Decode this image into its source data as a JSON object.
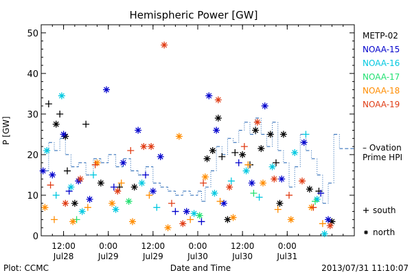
{
  "chart_data": {
    "type": "scatter",
    "title": "Hemispheric Power [GW]",
    "ylabel": "P [GW]",
    "xlabel": "Date and Time",
    "ylim": [
      0,
      52
    ],
    "xlim": [
      "2013-07-28 06:00",
      "2013-07-31 18:00"
    ],
    "yticks": [
      0,
      10,
      20,
      30,
      40,
      50
    ],
    "xticks": [
      {
        "time": "2013-07-28 12:00",
        "line1": "12:00",
        "line2": "Jul28"
      },
      {
        "time": "2013-07-29 00:00",
        "line1": "0:00",
        "line2": "Jul29"
      },
      {
        "time": "2013-07-29 12:00",
        "line1": "12:00",
        "line2": "Jul29"
      },
      {
        "time": "2013-07-30 00:00",
        "line1": "0:00",
        "line2": "Jul30"
      },
      {
        "time": "2013-07-30 12:00",
        "line1": "12:00",
        "line2": "Jul30"
      },
      {
        "time": "2013-07-31 00:00",
        "line1": "0:00",
        "line2": "Jul31"
      }
    ],
    "series": [
      {
        "name": "METP-02",
        "color": "#000000",
        "points": [
          [
            "2013-07-28 08:00",
            32.5,
            "+"
          ],
          [
            "2013-07-28 10:00",
            27.5,
            "*"
          ],
          [
            "2013-07-28 11:00",
            30.0,
            "+"
          ],
          [
            "2013-07-28 12:30",
            24.5,
            "*"
          ],
          [
            "2013-07-28 13:00",
            16.0,
            "+"
          ],
          [
            "2013-07-28 15:00",
            8.0,
            "*"
          ],
          [
            "2013-07-28 18:00",
            27.5,
            "+"
          ],
          [
            "2013-07-28 22:00",
            13.0,
            "*"
          ],
          [
            "2013-07-29 03:00",
            12.0,
            "+"
          ],
          [
            "2013-07-29 07:00",
            12.0,
            "*"
          ],
          [
            "2013-07-30 02:30",
            19.0,
            "*"
          ],
          [
            "2013-07-30 04:00",
            21.0,
            "*"
          ],
          [
            "2013-07-30 05:30",
            29.0,
            "*"
          ],
          [
            "2013-07-30 06:30",
            19.5,
            "+"
          ],
          [
            "2013-07-30 08:00",
            4.0,
            "*"
          ],
          [
            "2013-07-30 10:00",
            20.5,
            "+"
          ],
          [
            "2013-07-30 12:00",
            20.0,
            "*"
          ],
          [
            "2013-07-30 14:00",
            17.5,
            "+"
          ],
          [
            "2013-07-30 15:30",
            26.0,
            "*"
          ],
          [
            "2013-07-30 17:00",
            21.5,
            "*"
          ],
          [
            "2013-07-30 19:30",
            25.0,
            "*"
          ],
          [
            "2013-07-30 21:00",
            18.0,
            "+"
          ],
          [
            "2013-07-30 23:00",
            25.0,
            "*"
          ],
          [
            "2013-07-30 22:00",
            8.0,
            "*"
          ],
          [
            "2013-07-31 06:00",
            11.5,
            "*"
          ],
          [
            "2013-07-31 08:30",
            11.0,
            "+"
          ],
          [
            "2013-07-31 12:00",
            3.5,
            "*"
          ]
        ]
      },
      {
        "name": "NOAA-15",
        "color": "#0000cc",
        "points": [
          [
            "2013-07-28 06:30",
            16.0,
            "*"
          ],
          [
            "2013-07-28 09:00",
            15.0,
            "*"
          ],
          [
            "2013-07-28 12:00",
            25.0,
            "*"
          ],
          [
            "2013-07-28 13:30",
            11.0,
            "+"
          ],
          [
            "2013-07-28 16:00",
            13.5,
            "*"
          ],
          [
            "2013-07-28 19:00",
            9.0,
            "*"
          ],
          [
            "2013-07-28 23:30",
            36.0,
            "*"
          ],
          [
            "2013-07-29 01:30",
            12.0,
            "+"
          ],
          [
            "2013-07-29 04:00",
            18.0,
            "*"
          ],
          [
            "2013-07-29 08:00",
            26.0,
            "*"
          ],
          [
            "2013-07-29 10:00",
            15.0,
            "+"
          ],
          [
            "2013-07-29 12:00",
            11.0,
            "*"
          ],
          [
            "2013-07-29 14:00",
            19.5,
            "*"
          ],
          [
            "2013-07-29 18:00",
            6.0,
            "+"
          ],
          [
            "2013-07-29 21:00",
            6.0,
            "*"
          ],
          [
            "2013-07-30 01:00",
            3.5,
            "+"
          ],
          [
            "2013-07-30 03:00",
            34.5,
            "*"
          ],
          [
            "2013-07-30 05:00",
            26.0,
            "*"
          ],
          [
            "2013-07-30 07:00",
            8.0,
            "*"
          ],
          [
            "2013-07-30 11:00",
            18.0,
            "+"
          ],
          [
            "2013-07-30 14:30",
            13.0,
            "*"
          ],
          [
            "2013-07-30 18:00",
            32.0,
            "*"
          ],
          [
            "2013-07-30 22:30",
            14.0,
            "*"
          ],
          [
            "2013-07-31 04:30",
            23.0,
            "*"
          ],
          [
            "2013-07-31 09:00",
            10.5,
            "+"
          ],
          [
            "2013-07-31 11:00",
            4.0,
            "*"
          ]
        ]
      },
      {
        "name": "NOAA-16",
        "color": "#00c8e0",
        "points": [
          [
            "2013-07-28 07:30",
            21.0,
            "*"
          ],
          [
            "2013-07-28 10:00",
            10.0,
            "+"
          ],
          [
            "2013-07-28 11:30",
            34.5,
            "*"
          ],
          [
            "2013-07-28 14:00",
            12.0,
            "*"
          ],
          [
            "2013-07-28 17:00",
            6.0,
            "*"
          ],
          [
            "2013-07-28 20:00",
            15.0,
            "+"
          ],
          [
            "2013-07-29 02:00",
            6.5,
            "*"
          ],
          [
            "2013-07-29 09:00",
            13.0,
            "*"
          ],
          [
            "2013-07-29 13:00",
            7.0,
            "+"
          ],
          [
            "2013-07-29 23:00",
            5.5,
            "*"
          ],
          [
            "2013-07-30 04:30",
            10.5,
            "*"
          ],
          [
            "2013-07-30 09:00",
            13.5,
            "+"
          ],
          [
            "2013-07-30 13:00",
            16.0,
            "*"
          ],
          [
            "2013-07-30 16:30",
            9.5,
            "+"
          ],
          [
            "2013-07-30 20:00",
            17.0,
            "*"
          ],
          [
            "2013-07-31 02:00",
            20.5,
            "*"
          ],
          [
            "2013-07-31 05:00",
            25.0,
            "+"
          ],
          [
            "2013-07-31 08:00",
            9.0,
            "*"
          ],
          [
            "2013-07-31 10:00",
            0.5,
            "*"
          ]
        ]
      },
      {
        "name": "NOAA-17",
        "color": "#20e070",
        "points": [
          [
            "2013-07-28 15:30",
            4.0,
            "+"
          ],
          [
            "2013-07-29 05:30",
            8.5,
            "*"
          ],
          [
            "2013-07-30 00:30",
            5.0,
            "*"
          ],
          [
            "2013-07-30 15:00",
            10.5,
            "+"
          ],
          [
            "2013-07-31 07:30",
            8.5,
            "+"
          ]
        ]
      },
      {
        "name": "NOAA-18",
        "color": "#ff8c00",
        "points": [
          [
            "2013-07-28 07:00",
            7.0,
            "*"
          ],
          [
            "2013-07-28 09:30",
            4.0,
            "+"
          ],
          [
            "2013-07-28 14:30",
            3.5,
            "*"
          ],
          [
            "2013-07-28 18:30",
            7.0,
            "+"
          ],
          [
            "2013-07-28 21:00",
            18.0,
            "*"
          ],
          [
            "2013-07-29 01:00",
            8.0,
            "*"
          ],
          [
            "2013-07-29 03:30",
            13.0,
            "+"
          ],
          [
            "2013-07-29 06:30",
            3.5,
            "*"
          ],
          [
            "2013-07-29 11:00",
            10.0,
            "+"
          ],
          [
            "2013-07-29 16:00",
            2.0,
            "*"
          ],
          [
            "2013-07-29 19:00",
            24.5,
            "*"
          ],
          [
            "2013-07-29 22:00",
            4.0,
            "+"
          ],
          [
            "2013-07-30 02:00",
            14.5,
            "*"
          ],
          [
            "2013-07-30 06:00",
            8.5,
            "+"
          ],
          [
            "2013-07-30 09:30",
            4.5,
            "*"
          ],
          [
            "2013-07-30 13:30",
            17.5,
            "+"
          ],
          [
            "2013-07-30 17:30",
            13.0,
            "*"
          ],
          [
            "2013-07-30 21:30",
            6.5,
            "+"
          ],
          [
            "2013-07-31 01:00",
            4.0,
            "*"
          ],
          [
            "2013-07-31 06:30",
            7.0,
            "*"
          ],
          [
            "2013-07-31 09:30",
            3.0,
            "+"
          ]
        ]
      },
      {
        "name": "NOAA-19",
        "color": "#e03c14",
        "points": [
          [
            "2013-07-28 08:30",
            12.5,
            "+"
          ],
          [
            "2013-07-28 12:30",
            8.0,
            "*"
          ],
          [
            "2013-07-28 16:30",
            14.0,
            "*"
          ],
          [
            "2013-07-28 20:30",
            17.5,
            "+"
          ],
          [
            "2013-07-29 02:30",
            11.0,
            "*"
          ],
          [
            "2013-07-29 06:00",
            21.0,
            "+"
          ],
          [
            "2013-07-29 09:30",
            22.0,
            "*"
          ],
          [
            "2013-07-29 11:30",
            22.0,
            "*"
          ],
          [
            "2013-07-29 15:00",
            47.0,
            "*"
          ],
          [
            "2013-07-29 17:00",
            8.0,
            "+"
          ],
          [
            "2013-07-29 20:00",
            3.0,
            "*"
          ],
          [
            "2013-07-30 01:30",
            13.0,
            "+"
          ],
          [
            "2013-07-30 05:30",
            33.5,
            "*"
          ],
          [
            "2013-07-30 08:30",
            12.0,
            "*"
          ],
          [
            "2013-07-30 12:30",
            22.0,
            "+"
          ],
          [
            "2013-07-30 16:00",
            28.0,
            "*"
          ],
          [
            "2013-07-30 20:30",
            14.0,
            "*"
          ],
          [
            "2013-07-31 00:30",
            10.0,
            "+"
          ],
          [
            "2013-07-31 04:00",
            13.5,
            "*"
          ],
          [
            "2013-07-31 07:00",
            7.0,
            "+"
          ],
          [
            "2013-07-31 11:30",
            2.5,
            "*"
          ]
        ]
      }
    ],
    "model": {
      "name": "Ovation Prime HPI",
      "label_line1": "– Ovation",
      "label_line2": "Prime HPI",
      "color": "#1a5fb0",
      "values": [
        [
          "2013-07-28 06:00",
          16.0
        ],
        [
          "2013-07-28 08:00",
          23.0
        ],
        [
          "2013-07-28 09:30",
          21.0
        ],
        [
          "2013-07-28 11:00",
          24.0
        ],
        [
          "2013-07-28 12:30",
          20.0
        ],
        [
          "2013-07-28 14:00",
          17.0
        ],
        [
          "2013-07-28 16:00",
          18.0
        ],
        [
          "2013-07-28 18:00",
          15.0
        ],
        [
          "2013-07-28 20:00",
          19.0
        ],
        [
          "2013-07-28 22:00",
          18.0
        ],
        [
          "2013-07-29 00:00",
          20.0
        ],
        [
          "2013-07-29 02:00",
          17.0
        ],
        [
          "2013-07-29 04:00",
          19.0
        ],
        [
          "2013-07-29 06:00",
          16.0
        ],
        [
          "2013-07-29 08:00",
          15.0
        ],
        [
          "2013-07-29 10:00",
          17.0
        ],
        [
          "2013-07-29 12:00",
          13.0
        ],
        [
          "2013-07-29 14:00",
          12.0
        ],
        [
          "2013-07-29 16:00",
          11.0
        ],
        [
          "2013-07-29 18:00",
          10.0
        ],
        [
          "2013-07-29 20:00",
          11.0
        ],
        [
          "2013-07-29 22:00",
          10.0
        ],
        [
          "2013-07-30 00:00",
          11.0
        ],
        [
          "2013-07-30 01:00",
          8.5
        ],
        [
          "2013-07-30 02:00",
          12.0
        ],
        [
          "2013-07-30 03:30",
          16.0
        ],
        [
          "2013-07-30 05:00",
          22.0
        ],
        [
          "2013-07-30 06:30",
          20.0
        ],
        [
          "2013-07-30 08:00",
          24.0
        ],
        [
          "2013-07-30 09:30",
          23.0
        ],
        [
          "2013-07-30 11:00",
          26.0
        ],
        [
          "2013-07-30 12:30",
          28.0
        ],
        [
          "2013-07-30 14:00",
          25.0
        ],
        [
          "2013-07-30 15:30",
          29.0
        ],
        [
          "2013-07-30 17:00",
          25.0
        ],
        [
          "2013-07-30 18:30",
          22.0
        ],
        [
          "2013-07-30 20:00",
          28.0
        ],
        [
          "2013-07-30 21:30",
          21.0
        ],
        [
          "2013-07-30 23:00",
          18.0
        ],
        [
          "2013-07-31 00:30",
          12.0
        ],
        [
          "2013-07-31 02:00",
          17.0
        ],
        [
          "2013-07-31 03:30",
          25.0
        ],
        [
          "2013-07-31 05:00",
          21.0
        ],
        [
          "2013-07-31 06:30",
          19.0
        ],
        [
          "2013-07-31 08:00",
          15.0
        ],
        [
          "2013-07-31 09:30",
          8.0
        ],
        [
          "2013-07-31 11:00",
          13.0
        ],
        [
          "2013-07-31 12:30",
          25.0
        ],
        [
          "2013-07-31 14:00",
          21.5
        ]
      ]
    },
    "legend_placement": "right",
    "symbol_key": [
      {
        "symbol": "+",
        "label": "south"
      },
      {
        "symbol": "*",
        "label": "north"
      }
    ]
  },
  "footer": {
    "left": "Plot: CCMC",
    "right": "2013/07/31 11:10:07"
  }
}
